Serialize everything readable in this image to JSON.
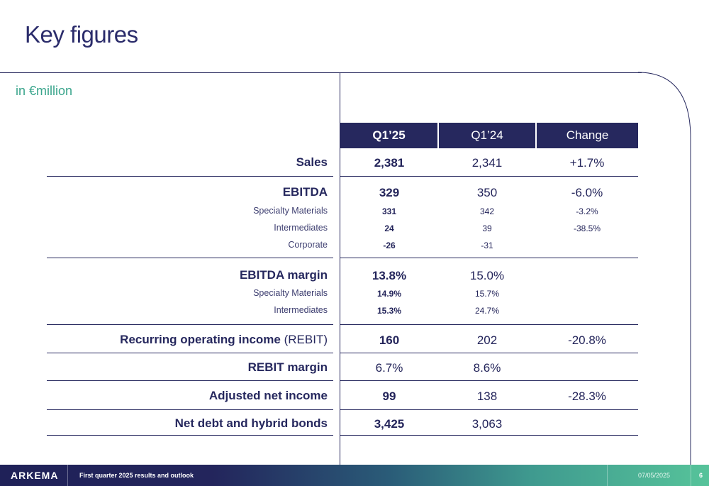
{
  "title": "Key figures",
  "unit_label": "in €million",
  "columns": [
    "Q1’25",
    "Q1’24",
    "Change"
  ],
  "rows": {
    "sales": {
      "label": "Sales",
      "q1_25": "2,381",
      "q1_24": "2,341",
      "change": "+1.7%"
    },
    "ebitda": {
      "label": "EBITDA",
      "q1_25": "329",
      "q1_24": "350",
      "change": "-6.0%"
    },
    "ebitda_specialty": {
      "label": "Specialty Materials",
      "q1_25": "331",
      "q1_24": "342",
      "change": "-3.2%"
    },
    "ebitda_intermediates": {
      "label": "Intermediates",
      "q1_25": "24",
      "q1_24": "39",
      "change": "-38.5%"
    },
    "ebitda_corporate": {
      "label": "Corporate",
      "q1_25": "-26",
      "q1_24": "-31",
      "change": ""
    },
    "ebitda_margin": {
      "label": "EBITDA margin",
      "q1_25": "13.8%",
      "q1_24": "15.0%",
      "change": ""
    },
    "margin_specialty": {
      "label": "Specialty Materials",
      "q1_25": "14.9%",
      "q1_24": "15.7%",
      "change": ""
    },
    "margin_intermediates": {
      "label": "Intermediates",
      "q1_25": "15.3%",
      "q1_24": "24.7%",
      "change": ""
    },
    "rebit": {
      "label": "Recurring operating income",
      "label_suffix": "(REBIT)",
      "q1_25": "160",
      "q1_24": "202",
      "change": "-20.8%"
    },
    "rebit_margin": {
      "label": "REBIT margin",
      "q1_25": "6.7%",
      "q1_24": "8.6%",
      "change": ""
    },
    "adjusted_net_income": {
      "label": "Adjusted net income",
      "q1_25": "99",
      "q1_24": "138",
      "change": "-28.3%"
    },
    "net_debt": {
      "label": "Net debt and hybrid bonds",
      "q1_25": "3,425",
      "q1_24": "3,063",
      "change": ""
    }
  },
  "footer": {
    "brand": "ARKEMA",
    "subtitle": "First quarter 2025 results and outlook",
    "date": "07/05/2025",
    "page": "6"
  },
  "colors": {
    "navy": "#26285e",
    "teal": "#3aa58c"
  }
}
